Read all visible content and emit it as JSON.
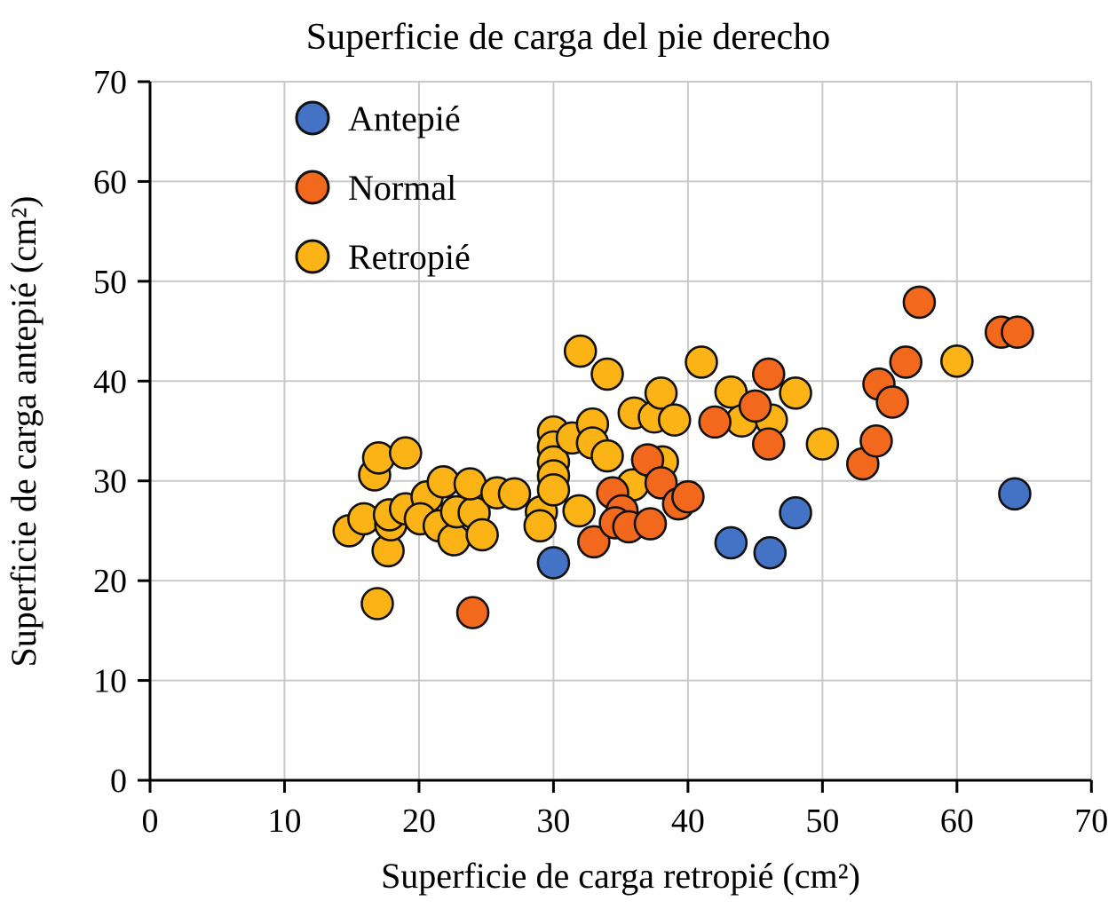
{
  "chart_data": {
    "type": "scatter",
    "title": "Superficie de carga del pie derecho",
    "xlabel": "Superficie de carga retropié (cm²)",
    "ylabel": "Superficie de carga antepié (cm²)",
    "xlim": [
      0,
      70
    ],
    "ylim": [
      0,
      70
    ],
    "xticks": [
      0,
      10,
      20,
      30,
      40,
      50,
      60,
      70
    ],
    "yticks": [
      0,
      10,
      20,
      30,
      40,
      50,
      60,
      70
    ],
    "grid": true,
    "grid_color": "#C9C9C9",
    "axis_color": "#000000",
    "marker_stroke_color": "#111111",
    "legend_position": "top-left-inside",
    "series": [
      {
        "name": "Antepié",
        "color": "#4472C4",
        "points": [
          [
            30,
            21.8
          ],
          [
            43.2,
            23.8
          ],
          [
            46.1,
            22.8
          ],
          [
            48,
            26.8
          ],
          [
            64.3,
            28.7
          ]
        ]
      },
      {
        "name": "Normal",
        "color": "#F2691E",
        "points": [
          [
            24,
            16.8
          ],
          [
            33,
            23.9
          ],
          [
            34.4,
            28.8
          ],
          [
            35.1,
            27.0
          ],
          [
            34.6,
            25.8
          ],
          [
            35.6,
            25.4
          ],
          [
            37.2,
            25.7
          ],
          [
            37,
            32.1
          ],
          [
            38,
            29.8
          ],
          [
            39.3,
            27.7
          ],
          [
            40,
            28.4
          ],
          [
            42,
            35.9
          ],
          [
            45,
            37.5
          ],
          [
            46,
            40.7
          ],
          [
            46,
            33.7
          ],
          [
            53,
            31.7
          ],
          [
            54,
            34.0
          ],
          [
            54.2,
            39.7
          ],
          [
            55.2,
            37.9
          ],
          [
            56.2,
            41.9
          ],
          [
            57.2,
            47.9
          ],
          [
            63.3,
            44.9
          ],
          [
            64.5,
            44.9
          ]
        ]
      },
      {
        "name": "Retropié",
        "color": "#FCB316",
        "points": [
          [
            14.8,
            25.0
          ],
          [
            15.9,
            26.2
          ],
          [
            16.7,
            30.6
          ],
          [
            17.0,
            32.3
          ],
          [
            16.9,
            17.7
          ],
          [
            17.7,
            23.0
          ],
          [
            17.9,
            25.6
          ],
          [
            17.8,
            26.6
          ],
          [
            19.0,
            27.2
          ],
          [
            19.0,
            32.8
          ],
          [
            20.6,
            28.4
          ],
          [
            20.1,
            26.2
          ],
          [
            21.8,
            29.9
          ],
          [
            21.5,
            25.5
          ],
          [
            22.6,
            24.1
          ],
          [
            22.8,
            26.9
          ],
          [
            24.1,
            26.8
          ],
          [
            23.8,
            29.7
          ],
          [
            24.7,
            24.6
          ],
          [
            25.8,
            28.8
          ],
          [
            27.1,
            28.7
          ],
          [
            29.1,
            26.9
          ],
          [
            29.0,
            25.5
          ],
          [
            31.9,
            27.0
          ],
          [
            30,
            34.9
          ],
          [
            30,
            33.4
          ],
          [
            30,
            31.9
          ],
          [
            30,
            30.5
          ],
          [
            30,
            29.1
          ],
          [
            31.4,
            34.3
          ],
          [
            32.9,
            35.7
          ],
          [
            32.9,
            33.8
          ],
          [
            34,
            32.5
          ],
          [
            32,
            43.0
          ],
          [
            34,
            40.7
          ],
          [
            36,
            36.8
          ],
          [
            37.5,
            36.4
          ],
          [
            38,
            38.8
          ],
          [
            39,
            36.1
          ],
          [
            38.1,
            31.9
          ],
          [
            35.9,
            29.6
          ],
          [
            41,
            41.9
          ],
          [
            43.2,
            38.9
          ],
          [
            44,
            36.0
          ],
          [
            46.2,
            36.1
          ],
          [
            48,
            38.8
          ],
          [
            50,
            33.7
          ],
          [
            60,
            42.0
          ]
        ]
      }
    ]
  }
}
